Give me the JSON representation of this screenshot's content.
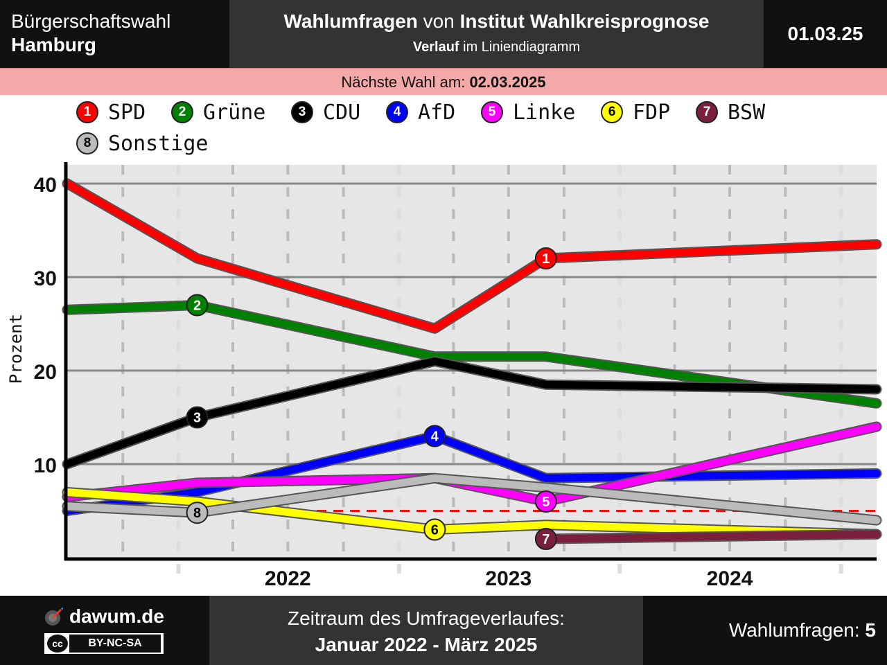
{
  "header": {
    "region_line1": "Bürgerschaftswahl",
    "region_line2": "Hamburg",
    "title_bold1": "Wahlumfragen",
    "title_mid": " von ",
    "title_bold2": "Institut Wahlkreisprognose",
    "subtitle_bold": "Verlauf",
    "subtitle_rest": " im Liniendiagramm",
    "date": "01.03.25"
  },
  "banner": {
    "label": "Nächste Wahl am: ",
    "date": "02.03.2025"
  },
  "legend": [
    {
      "number": "1",
      "name": "SPD"
    },
    {
      "number": "2",
      "name": "Grüne"
    },
    {
      "number": "3",
      "name": "CDU"
    },
    {
      "number": "4",
      "name": "AfD"
    },
    {
      "number": "5",
      "name": "Linke"
    },
    {
      "number": "6",
      "name": "FDP"
    },
    {
      "number": "7",
      "name": "BSW"
    },
    {
      "number": "8",
      "name": "Sonstige"
    }
  ],
  "chart_data": {
    "type": "line",
    "ylabel": "Prozent",
    "xlabel": "",
    "ylim": [
      0,
      42
    ],
    "xlim": [
      "2021-07-01",
      "2025-03-01"
    ],
    "yticks": [
      10,
      20,
      30,
      40
    ],
    "year_labels": [
      {
        "label": "2022",
        "date": "2022-01-01"
      },
      {
        "label": "2023",
        "date": "2023-01-01"
      },
      {
        "label": "2024",
        "date": "2024-01-01"
      }
    ],
    "threshold": 5,
    "grid": true,
    "series": [
      {
        "name": "SPD",
        "number": "1",
        "color": "#ff0000",
        "text_color": "#ffffff",
        "points": [
          [
            "2021-07-01",
            40
          ],
          [
            "2022-02-01",
            32
          ],
          [
            "2023-03-01",
            24.5
          ],
          [
            "2023-09-01",
            32
          ],
          [
            "2025-03-01",
            33.5
          ]
        ],
        "marker": [
          "2023-09-01",
          32
        ]
      },
      {
        "name": "Grüne",
        "number": "2",
        "color": "#008000",
        "text_color": "#ffffff",
        "points": [
          [
            "2021-07-01",
            26.5
          ],
          [
            "2022-02-01",
            27
          ],
          [
            "2023-03-01",
            21.5
          ],
          [
            "2023-09-01",
            21.5
          ],
          [
            "2025-03-01",
            16.5
          ]
        ],
        "marker": [
          "2022-02-01",
          27
        ]
      },
      {
        "name": "CDU",
        "number": "3",
        "color": "#000000",
        "text_color": "#ffffff",
        "points": [
          [
            "2021-07-01",
            10
          ],
          [
            "2022-02-01",
            15
          ],
          [
            "2023-03-01",
            21
          ],
          [
            "2023-09-01",
            18.5
          ],
          [
            "2025-03-01",
            18
          ]
        ],
        "marker": [
          "2022-02-01",
          15
        ]
      },
      {
        "name": "AfD",
        "number": "4",
        "color": "#0000ff",
        "text_color": "#ffffff",
        "points": [
          [
            "2021-07-01",
            5
          ],
          [
            "2022-02-01",
            7
          ],
          [
            "2023-03-01",
            13
          ],
          [
            "2023-09-01",
            8.5
          ],
          [
            "2025-03-01",
            9
          ]
        ],
        "marker": [
          "2023-03-01",
          13
        ]
      },
      {
        "name": "Linke",
        "number": "5",
        "color": "#ff00ff",
        "text_color": "#ffffff",
        "points": [
          [
            "2021-07-01",
            6.5
          ],
          [
            "2022-02-01",
            8
          ],
          [
            "2023-03-01",
            8.5
          ],
          [
            "2023-09-01",
            6
          ],
          [
            "2025-03-01",
            14
          ]
        ],
        "marker": [
          "2023-09-01",
          6
        ]
      },
      {
        "name": "FDP",
        "number": "6",
        "color": "#ffff00",
        "text_color": "#000000",
        "points": [
          [
            "2021-07-01",
            7
          ],
          [
            "2022-02-01",
            6
          ],
          [
            "2023-03-01",
            3
          ],
          [
            "2023-09-01",
            3.5
          ],
          [
            "2025-03-01",
            2.5
          ]
        ],
        "marker": [
          "2023-03-01",
          3
        ]
      },
      {
        "name": "BSW",
        "number": "7",
        "color": "#7a1f3d",
        "text_color": "#ffffff",
        "points": [
          [
            "2023-09-01",
            2
          ],
          [
            "2025-03-01",
            2.5
          ]
        ],
        "marker": [
          "2023-09-01",
          2
        ]
      },
      {
        "name": "Sonstige",
        "number": "8",
        "color": "#bbbbbb",
        "text_color": "#000000",
        "points": [
          [
            "2021-07-01",
            5.5
          ],
          [
            "2022-02-01",
            4.8
          ],
          [
            "2023-03-01",
            8.5
          ],
          [
            "2023-09-01",
            7.5
          ],
          [
            "2025-03-01",
            4
          ]
        ],
        "marker": [
          "2022-02-01",
          4.8
        ]
      }
    ]
  },
  "footer": {
    "site": "dawum.de",
    "license": "BY-NC-SA",
    "cc_icon_text": "cc",
    "period_label": "Zeitraum des Umfrageverlaufes:",
    "period_value": "Januar 2022 - März 2025",
    "count_label": "Wahlumfragen: ",
    "count_value": "5"
  }
}
